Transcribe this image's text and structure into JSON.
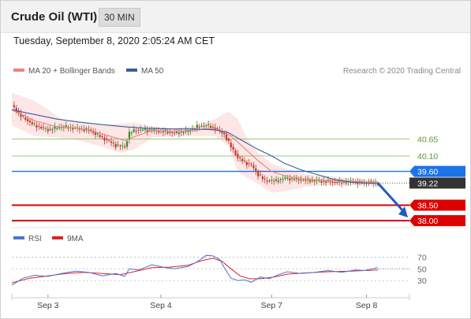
{
  "header": {
    "title": "Crude Oil (WTI)",
    "timeframe": "30 MIN"
  },
  "timestamp": "Tuesday, September 8, 2020 2:05:24 AM CET",
  "legend": {
    "ma20": "MA 20 + Bollinger Bands",
    "ma50": "MA 50",
    "credit": "Research © 2020 Trading Central"
  },
  "rsi_legend": {
    "rsi": "RSI",
    "ma": "9MA"
  },
  "colors": {
    "ma20": "#f08080",
    "band": "#fde2e2",
    "ma50": "#3a5ba0",
    "up_candle": "#2f8f2f",
    "down_candle": "#c0392b",
    "resistance": "#9ac87a",
    "pivot": "#1a73e8",
    "support": "#dd0000",
    "last_price": "#333333",
    "rsi": "#4a72d4",
    "rsi_ma": "#dd2222"
  },
  "chart_data": [
    {
      "type": "candlestick",
      "title": "Crude Oil (WTI) 30 MIN",
      "x_ticks": [
        "Sep 3",
        "Sep 4",
        "Sep 7",
        "Sep 8"
      ],
      "ylim": [
        37.9,
        42.2
      ],
      "price_path": [
        [
          0,
          41.75
        ],
        [
          4,
          41.4
        ],
        [
          10,
          41.1
        ],
        [
          16,
          40.95
        ],
        [
          22,
          41.05
        ],
        [
          28,
          41.0
        ],
        [
          34,
          40.95
        ],
        [
          40,
          40.7
        ],
        [
          46,
          40.45
        ],
        [
          50,
          40.4
        ],
        [
          52,
          40.85
        ],
        [
          55,
          40.95
        ],
        [
          60,
          40.95
        ],
        [
          66,
          40.9
        ],
        [
          72,
          40.85
        ],
        [
          78,
          40.9
        ],
        [
          82,
          41.05
        ],
        [
          86,
          41.1
        ],
        [
          90,
          41.0
        ],
        [
          94,
          40.8
        ],
        [
          97,
          40.4
        ],
        [
          100,
          40.05
        ],
        [
          103,
          39.9
        ],
        [
          106,
          39.8
        ],
        [
          109,
          39.5
        ],
        [
          112,
          39.3
        ],
        [
          115,
          39.3
        ],
        [
          117,
          39.3
        ],
        [
          121,
          39.38
        ],
        [
          127,
          39.33
        ],
        [
          133,
          39.3
        ],
        [
          139,
          39.27
        ],
        [
          145,
          39.24
        ],
        [
          151,
          39.27
        ],
        [
          155,
          39.22
        ],
        [
          158,
          39.24
        ],
        [
          162,
          39.22
        ]
      ],
      "ma20_path": [
        [
          0,
          41.6
        ],
        [
          10,
          41.25
        ],
        [
          20,
          41.05
        ],
        [
          30,
          41.0
        ],
        [
          40,
          40.82
        ],
        [
          50,
          40.6
        ],
        [
          55,
          40.75
        ],
        [
          62,
          40.92
        ],
        [
          72,
          40.9
        ],
        [
          82,
          40.95
        ],
        [
          90,
          41.0
        ],
        [
          97,
          40.75
        ],
        [
          103,
          40.35
        ],
        [
          109,
          39.95
        ],
        [
          115,
          39.6
        ],
        [
          121,
          39.45
        ],
        [
          130,
          39.35
        ],
        [
          140,
          39.3
        ],
        [
          150,
          39.27
        ],
        [
          162,
          39.25
        ]
      ],
      "upper_band": [
        [
          0,
          42.15
        ],
        [
          10,
          41.9
        ],
        [
          16,
          41.6
        ],
        [
          22,
          41.3
        ],
        [
          30,
          41.2
        ],
        [
          40,
          41.1
        ],
        [
          48,
          41.15
        ],
        [
          54,
          41.2
        ],
        [
          62,
          41.05
        ],
        [
          72,
          41.0
        ],
        [
          82,
          41.1
        ],
        [
          90,
          41.3
        ],
        [
          96,
          41.55
        ],
        [
          100,
          41.3
        ],
        [
          104,
          40.7
        ],
        [
          109,
          40.2
        ],
        [
          115,
          39.85
        ],
        [
          121,
          39.7
        ],
        [
          130,
          39.5
        ],
        [
          140,
          39.45
        ],
        [
          150,
          39.38
        ],
        [
          162,
          39.3
        ]
      ],
      "lower_band": [
        [
          0,
          41.1
        ],
        [
          10,
          40.75
        ],
        [
          20,
          40.7
        ],
        [
          30,
          40.6
        ],
        [
          40,
          40.4
        ],
        [
          48,
          40.2
        ],
        [
          54,
          40.3
        ],
        [
          62,
          40.7
        ],
        [
          72,
          40.75
        ],
        [
          82,
          40.75
        ],
        [
          90,
          40.75
        ],
        [
          96,
          40.4
        ],
        [
          100,
          39.6
        ],
        [
          104,
          39.4
        ],
        [
          109,
          39.2
        ],
        [
          115,
          38.9
        ],
        [
          121,
          38.95
        ],
        [
          130,
          39.1
        ],
        [
          140,
          39.15
        ],
        [
          150,
          39.15
        ],
        [
          162,
          39.2
        ]
      ],
      "ma50_path": [
        [
          0,
          41.6
        ],
        [
          10,
          41.45
        ],
        [
          20,
          41.3
        ],
        [
          30,
          41.2
        ],
        [
          40,
          41.12
        ],
        [
          50,
          41.05
        ],
        [
          60,
          41.0
        ],
        [
          70,
          40.98
        ],
        [
          80,
          40.98
        ],
        [
          90,
          40.95
        ],
        [
          96,
          40.85
        ],
        [
          102,
          40.6
        ],
        [
          108,
          40.35
        ],
        [
          115,
          40.1
        ],
        [
          121,
          39.85
        ],
        [
          128,
          39.65
        ],
        [
          135,
          39.5
        ],
        [
          142,
          39.35
        ],
        [
          150,
          39.25
        ],
        [
          162,
          39.2
        ]
      ],
      "levels": [
        {
          "label": "40.65",
          "value": 40.65,
          "kind": "resistance"
        },
        {
          "label": "40.10",
          "value": 40.1,
          "kind": "resistance"
        },
        {
          "label": "39.60",
          "value": 39.6,
          "kind": "pivot"
        },
        {
          "label": "39.22",
          "value": 39.22,
          "kind": "last"
        },
        {
          "label": "38.50",
          "value": 38.5,
          "kind": "support"
        },
        {
          "label": "38.00",
          "value": 38.0,
          "kind": "support"
        }
      ],
      "forecast_arrow": {
        "from": [
          162,
          39.22
        ],
        "to": [
          176,
          38.0
        ]
      }
    },
    {
      "type": "line",
      "title": "RSI",
      "ylim": [
        10,
        80
      ],
      "y_ticks": [
        "70",
        "50",
        "30"
      ],
      "guide_levels": [
        70,
        50,
        30
      ],
      "series": [
        {
          "name": "RSI",
          "values": [
            [
              0,
              22
            ],
            [
              5,
              34
            ],
            [
              10,
              39
            ],
            [
              16,
              37
            ],
            [
              22,
              42
            ],
            [
              28,
              46
            ],
            [
              34,
              44
            ],
            [
              40,
              38
            ],
            [
              46,
              42
            ],
            [
              50,
              37
            ],
            [
              52,
              50
            ],
            [
              56,
              48
            ],
            [
              62,
              57
            ],
            [
              68,
              52
            ],
            [
              72,
              50
            ],
            [
              78,
              54
            ],
            [
              82,
              62
            ],
            [
              86,
              73
            ],
            [
              89,
              72
            ],
            [
              92,
              66
            ],
            [
              94,
              52
            ],
            [
              97,
              34
            ],
            [
              100,
              30
            ],
            [
              103,
              31
            ],
            [
              106,
              27
            ],
            [
              110,
              36
            ],
            [
              114,
              33
            ],
            [
              118,
              40
            ],
            [
              122,
              45
            ],
            [
              128,
              42
            ],
            [
              134,
              44
            ],
            [
              140,
              47
            ],
            [
              146,
              44
            ],
            [
              152,
              48
            ],
            [
              156,
              47
            ],
            [
              162,
              52
            ]
          ]
        },
        {
          "name": "9MA",
          "values": [
            [
              0,
              26
            ],
            [
              8,
              34
            ],
            [
              16,
              38
            ],
            [
              24,
              42
            ],
            [
              32,
              44
            ],
            [
              40,
              42
            ],
            [
              48,
              40
            ],
            [
              54,
              45
            ],
            [
              62,
              52
            ],
            [
              70,
              53
            ],
            [
              78,
              56
            ],
            [
              84,
              64
            ],
            [
              89,
              68
            ],
            [
              93,
              63
            ],
            [
              97,
              50
            ],
            [
              101,
              38
            ],
            [
              105,
              33
            ],
            [
              110,
              33
            ],
            [
              116,
              36
            ],
            [
              122,
              41
            ],
            [
              130,
              43
            ],
            [
              140,
              45
            ],
            [
              150,
              46
            ],
            [
              162,
              48
            ]
          ]
        }
      ]
    }
  ]
}
